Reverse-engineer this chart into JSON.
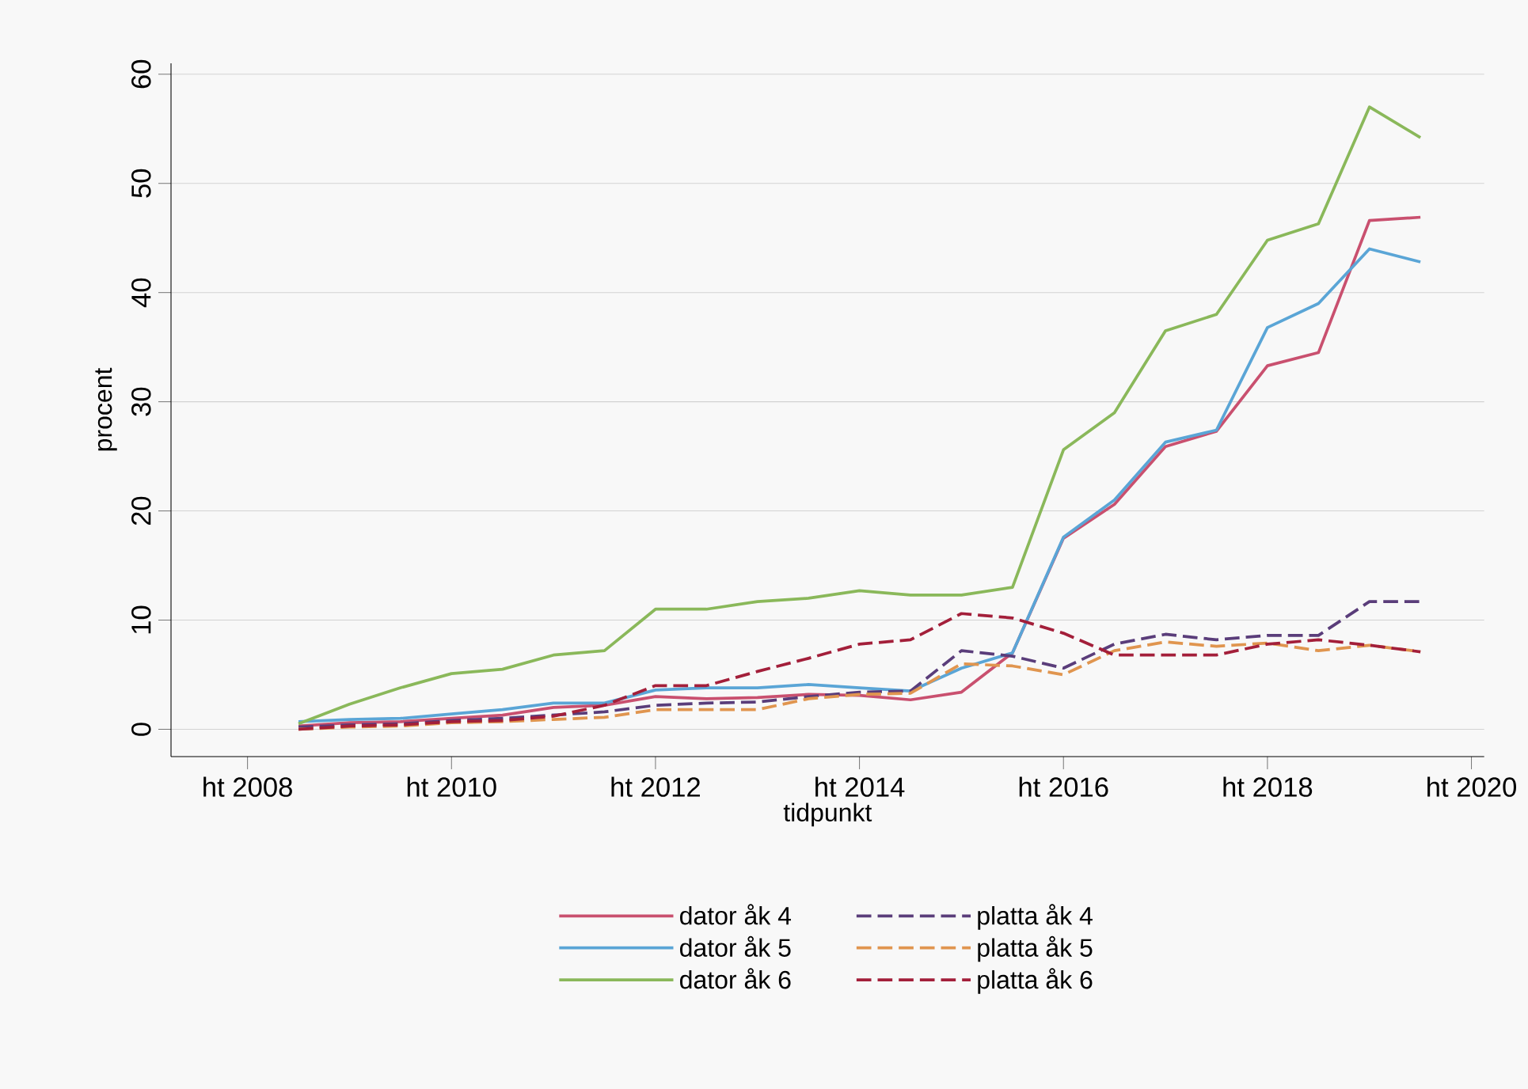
{
  "chart_data": {
    "type": "line",
    "xlabel": "tidpunkt",
    "ylabel": "procent",
    "categories": [
      "ht 2008",
      null,
      null,
      null,
      "ht 2010",
      null,
      null,
      null,
      "ht 2012",
      null,
      null,
      null,
      "ht 2014",
      null,
      null,
      null,
      "ht 2016",
      null,
      null,
      null,
      "ht 2018",
      null,
      null,
      null,
      "ht 2020"
    ],
    "series": [
      {
        "name": "dator åk 4",
        "color": "#c9506f",
        "line_style": "solid",
        "values": [
          null,
          0.3,
          0.6,
          0.7,
          1,
          1.3,
          2,
          2.2,
          3,
          2.8,
          2.9,
          3.2,
          3.1,
          2.7,
          3.4,
          7,
          17.5,
          20.6,
          25.9,
          27.3,
          33.3,
          34.5,
          46.6,
          46.9,
          null
        ]
      },
      {
        "name": "dator åk 5",
        "color": "#5aa5d6",
        "line_style": "solid",
        "values": [
          null,
          0.7,
          0.9,
          1,
          1.4,
          1.8,
          2.4,
          2.4,
          3.6,
          3.8,
          3.8,
          4.1,
          3.8,
          3.5,
          5.6,
          7,
          17.6,
          21,
          26.3,
          27.4,
          36.8,
          39,
          44,
          42.8,
          null
        ]
      },
      {
        "name": "dator åk 6",
        "color": "#8ab85a",
        "line_style": "solid",
        "values": [
          null,
          0.5,
          2.3,
          3.8,
          5.1,
          5.5,
          6.8,
          7.2,
          11,
          11,
          11.7,
          12,
          12.7,
          12.3,
          12.3,
          13,
          25.6,
          29,
          36.5,
          38,
          44.8,
          46.3,
          57,
          54.2,
          null
        ]
      },
      {
        "name": "platta åk 4",
        "color": "#5a3d7a",
        "line_style": "dashed",
        "values": [
          null,
          0.2,
          0.4,
          0.5,
          0.8,
          1,
          1.3,
          1.6,
          2.2,
          2.4,
          2.5,
          3,
          3.4,
          3.5,
          7.2,
          6.7,
          5.6,
          7.8,
          8.7,
          8.2,
          8.6,
          8.6,
          11.7,
          11.7,
          null
        ]
      },
      {
        "name": "platta åk 5",
        "color": "#e0954f",
        "line_style": "dashed",
        "values": [
          null,
          0,
          0.2,
          0.3,
          0.6,
          0.7,
          0.9,
          1.1,
          1.8,
          1.8,
          1.8,
          2.8,
          3.2,
          3.3,
          6,
          5.8,
          5,
          7.2,
          8,
          7.6,
          7.9,
          7.2,
          7.7,
          7.1,
          null
        ]
      },
      {
        "name": "platta åk 6",
        "color": "#a31f3a",
        "line_style": "dashed",
        "values": [
          null,
          0,
          0.3,
          0.4,
          0.7,
          0.8,
          1.2,
          2.2,
          4,
          4,
          5.3,
          6.5,
          7.8,
          8.2,
          10.6,
          10.2,
          8.8,
          6.8,
          6.8,
          6.8,
          7.8,
          8.2,
          7.7,
          7.1,
          null
        ]
      }
    ],
    "ylim": [
      -2.5,
      61
    ],
    "yticks": [
      0,
      10,
      20,
      30,
      40,
      50,
      60
    ],
    "grid": "y",
    "legend": "bottom",
    "marker": "none"
  }
}
